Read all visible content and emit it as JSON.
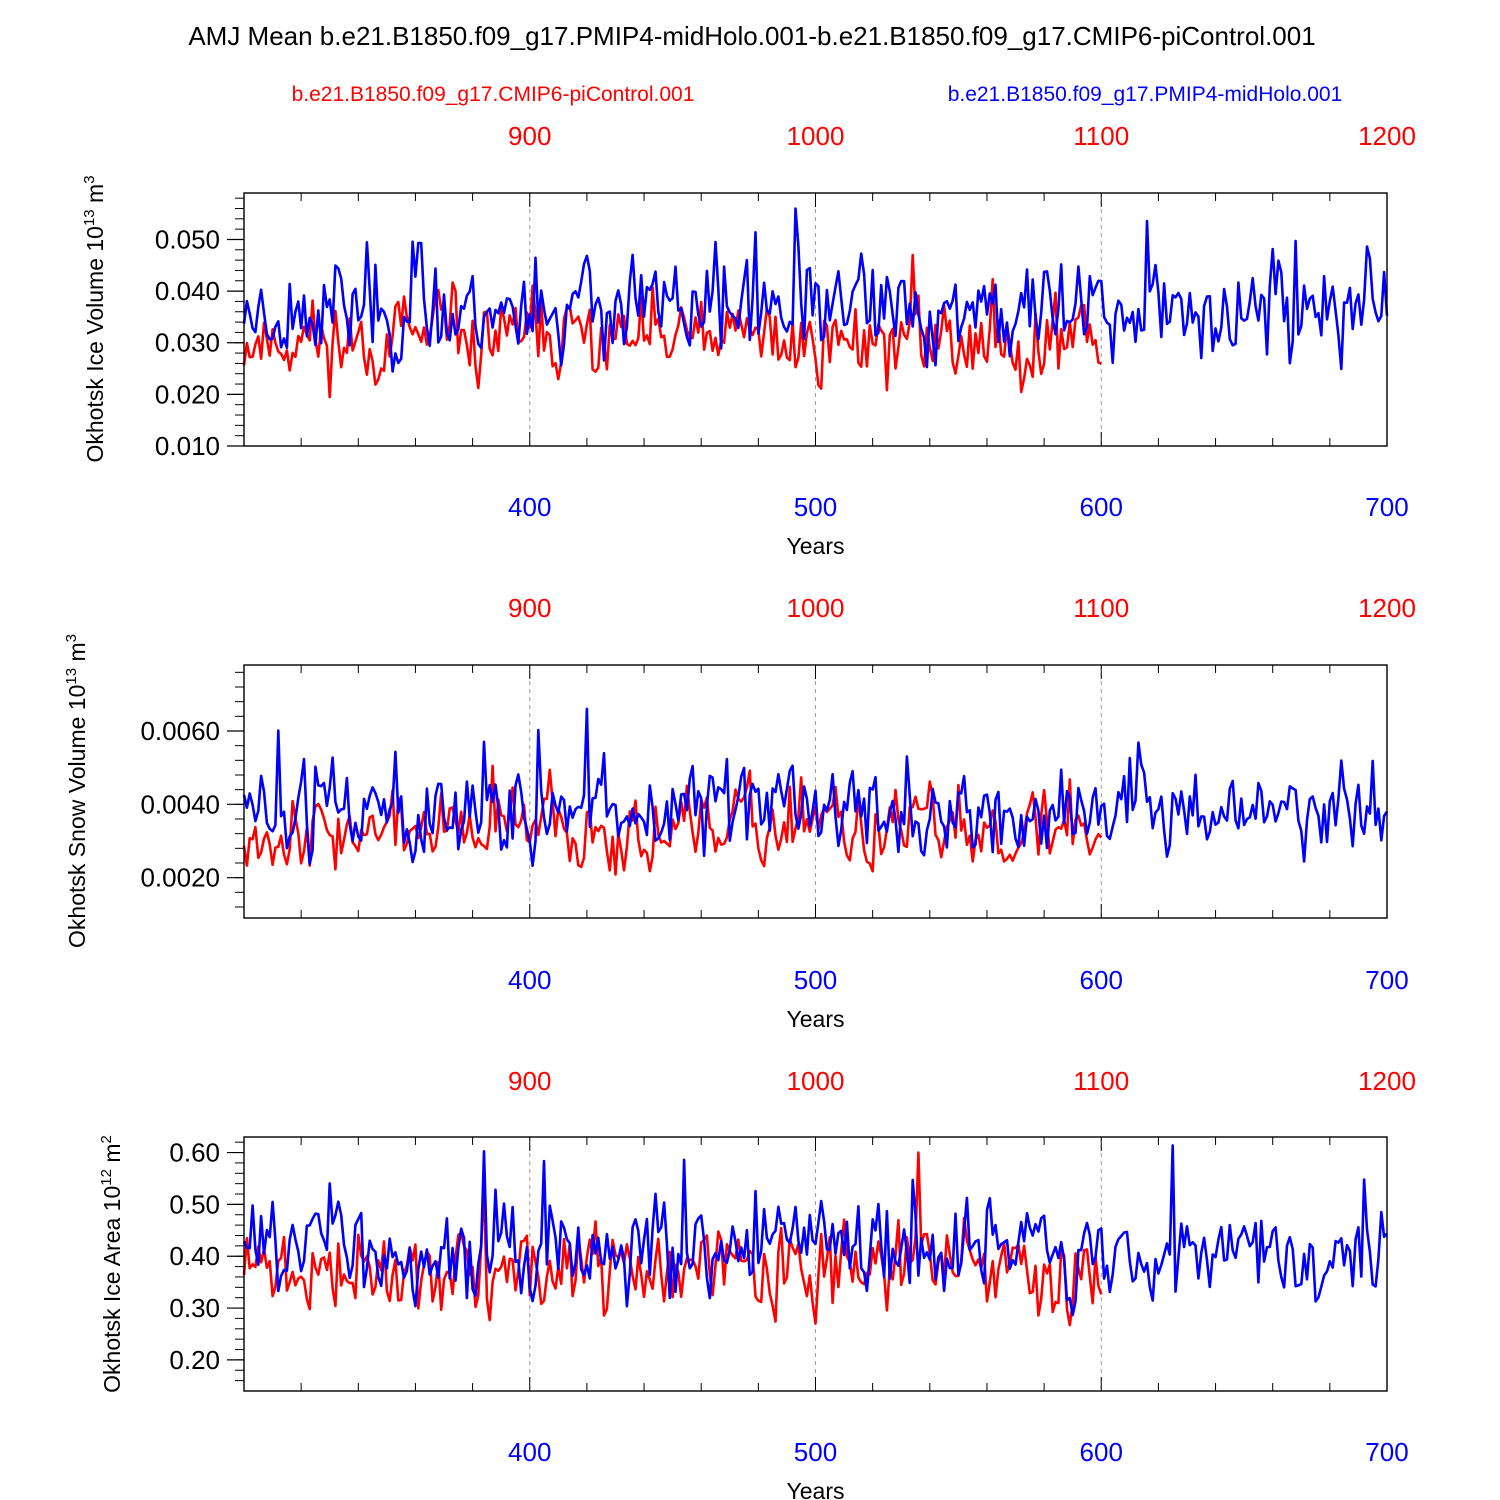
{
  "title": "AMJ Mean b.e21.B1850.f09_g17.PMIP4-midHolo.001-b.e21.B1850.f09_g17.CMIP6-piControl.001",
  "legend": {
    "red_label": "b.e21.B1850.f09_g17.CMIP6-piControl.001",
    "blue_label": "b.e21.B1850.f09_g17.PMIP4-midHolo.001"
  },
  "colors": {
    "red": "#ff0000",
    "blue": "#0000ff",
    "axis": "#000000",
    "grid": "#999999"
  },
  "chart_data": [
    {
      "type": "line",
      "title": "",
      "ylabel": "Okhotsk Ice Volume",
      "ylabel_unit": "10",
      "ylabel_exp1": "13",
      "ylabel_unit2": "m",
      "ylabel_exp2": "3",
      "xlabel": "Years",
      "xlim": [
        300,
        700
      ],
      "x2lim": [
        800,
        1200
      ],
      "ylim": [
        0.01,
        0.059
      ],
      "yticks": [
        0.01,
        0.02,
        0.03,
        0.04,
        0.05
      ],
      "yticklabels": [
        "0.010",
        "0.020",
        "0.030",
        "0.040",
        "0.050"
      ],
      "yminor": 0.002,
      "xticks": [
        400,
        500,
        600,
        700
      ],
      "xticklabels": [
        "400",
        "500",
        "600",
        "700"
      ],
      "x2ticklabels": [
        "900",
        "1000",
        "1100",
        "1200"
      ],
      "series": [
        {
          "name": "b.e21.B1850.f09_g17.CMIP6-piControl.001",
          "color": "#ff0000",
          "x_start": 300,
          "seed": 11,
          "mean": 0.0305,
          "amp": 0.0075,
          "vmin": 0.01,
          "vmax": 0.054,
          "count": 301
        },
        {
          "name": "b.e21.B1850.f09_g17.PMIP4-midHolo.001",
          "color": "#0000ff",
          "x_start": 300,
          "seed": 23,
          "mean": 0.0365,
          "amp": 0.0085,
          "vmin": 0.015,
          "vmax": 0.058,
          "count": 401
        }
      ]
    },
    {
      "type": "line",
      "title": "",
      "ylabel": "Okhotsk Snow Volume",
      "ylabel_unit": "10",
      "ylabel_exp1": "13",
      "ylabel_unit2": "m",
      "ylabel_exp2": "3",
      "xlabel": "Years",
      "xlim": [
        300,
        700
      ],
      "x2lim": [
        800,
        1200
      ],
      "ylim": [
        0.0009,
        0.0078
      ],
      "yticks": [
        0.002,
        0.004,
        0.006
      ],
      "yticklabels": [
        "0.0020",
        "0.0040",
        "0.0060"
      ],
      "yminor": 0.0004,
      "xticks": [
        400,
        500,
        600,
        700
      ],
      "xticklabels": [
        "400",
        "500",
        "600",
        "700"
      ],
      "x2ticklabels": [
        "900",
        "1000",
        "1100",
        "1200"
      ],
      "series": [
        {
          "name": "b.e21.B1850.f09_g17.CMIP6-piControl.001",
          "color": "#ff0000",
          "x_start": 300,
          "seed": 37,
          "mean": 0.0033,
          "amp": 0.0009,
          "vmin": 0.0009,
          "vmax": 0.0058,
          "count": 301
        },
        {
          "name": "b.e21.B1850.f09_g17.PMIP4-midHolo.001",
          "color": "#0000ff",
          "x_start": 300,
          "seed": 51,
          "mean": 0.0038,
          "amp": 0.0011,
          "vmin": 0.0012,
          "vmax": 0.0078,
          "count": 401
        }
      ]
    },
    {
      "type": "line",
      "title": "",
      "ylabel": "Okhotsk Ice Area",
      "ylabel_unit": "10",
      "ylabel_exp1": "12",
      "ylabel_unit2": "m",
      "ylabel_exp2": "2",
      "xlabel": "Years",
      "xlim": [
        300,
        700
      ],
      "x2lim": [
        800,
        1200
      ],
      "ylim": [
        0.14,
        0.63
      ],
      "yticks": [
        0.2,
        0.3,
        0.4,
        0.5,
        0.6
      ],
      "yticklabels": [
        "0.20",
        "0.30",
        "0.40",
        "0.50",
        "0.60"
      ],
      "yminor": 0.02,
      "xticks": [
        400,
        500,
        600,
        700
      ],
      "xticklabels": [
        "400",
        "500",
        "600",
        "700"
      ],
      "x2ticklabels": [
        "900",
        "1000",
        "1100",
        "1200"
      ],
      "series": [
        {
          "name": "b.e21.B1850.f09_g17.CMIP6-piControl.001",
          "color": "#ff0000",
          "x_start": 300,
          "seed": 71,
          "mean": 0.37,
          "amp": 0.075,
          "vmin": 0.14,
          "vmax": 0.6,
          "count": 301
        },
        {
          "name": "b.e21.B1850.f09_g17.PMIP4-midHolo.001",
          "color": "#0000ff",
          "x_start": 300,
          "seed": 83,
          "mean": 0.41,
          "amp": 0.08,
          "vmin": 0.2,
          "vmax": 0.63,
          "count": 401
        }
      ]
    }
  ]
}
